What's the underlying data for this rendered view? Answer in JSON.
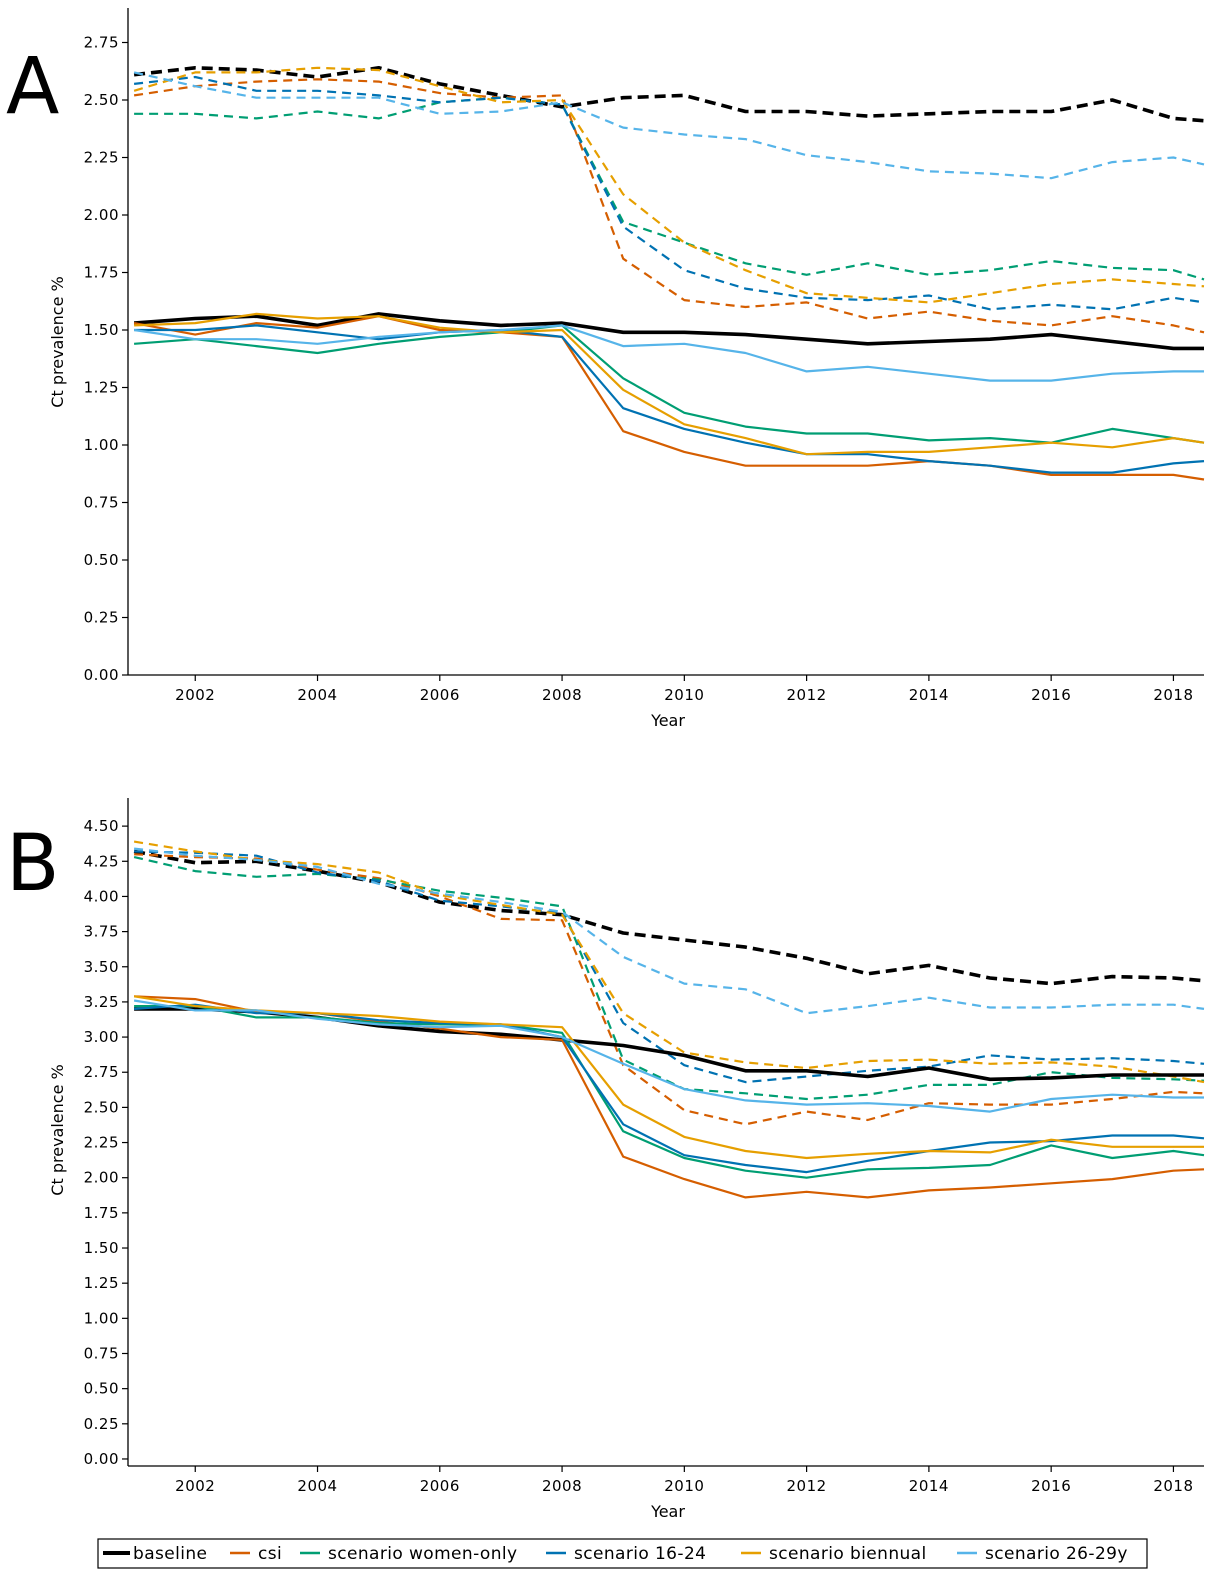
{
  "colors": {
    "baseline": "#000000",
    "csi": "#D55E00",
    "scenario women-only": "#009E73",
    "scenario 16-24": "#0072B2",
    "scenario biennual": "#E69F00",
    "scenario 26-29y": "#56B4E9"
  },
  "legend": {
    "placement": "bottom",
    "items": [
      "baseline",
      "csi",
      "scenario women-only",
      "scenario 16-24",
      "scenario biennual",
      "scenario 26-29y"
    ]
  },
  "chart_data": [
    {
      "panel_label": "A",
      "type": "line",
      "xlabel": "Year",
      "ylabel": "Ct prevalence %",
      "xlim": [
        2000.9,
        2018.5
      ],
      "ylim": [
        0,
        2.9
      ],
      "xticks": [
        "2002",
        "2004",
        "2006",
        "2008",
        "2010",
        "2012",
        "2014",
        "2016",
        "2018"
      ],
      "yticks": [
        "0.00",
        "0.25",
        "0.50",
        "0.75",
        "1.00",
        "1.25",
        "1.50",
        "1.75",
        "2.00",
        "2.25",
        "2.50",
        "2.75"
      ],
      "grid": false,
      "line_styles": "dashed and solid lines (legend shows solid)",
      "x": [
        2001,
        2002,
        2003,
        2004,
        2005,
        2006,
        2007,
        2008,
        2009,
        2010,
        2011,
        2012,
        2013,
        2014,
        2015,
        2016,
        2017,
        2018,
        2018.5
      ],
      "series": [
        {
          "name": "baseline",
          "dashed": true,
          "values": [
            2.61,
            2.64,
            2.63,
            2.6,
            2.64,
            2.57,
            2.52,
            2.47,
            2.51,
            2.52,
            2.45,
            2.45,
            2.43,
            2.44,
            2.45,
            2.45,
            2.5,
            2.42,
            2.41
          ]
        },
        {
          "name": "csi",
          "dashed": true,
          "values": [
            2.52,
            2.56,
            2.58,
            2.59,
            2.58,
            2.53,
            2.51,
            2.52,
            1.81,
            1.63,
            1.6,
            1.62,
            1.55,
            1.58,
            1.54,
            1.52,
            1.56,
            1.52,
            1.49
          ]
        },
        {
          "name": "scenario women-only",
          "dashed": true,
          "values": [
            2.44,
            2.44,
            2.42,
            2.45,
            2.42,
            2.49,
            2.51,
            2.48,
            1.97,
            1.88,
            1.79,
            1.74,
            1.79,
            1.74,
            1.76,
            1.8,
            1.77,
            1.76,
            1.72
          ]
        },
        {
          "name": "scenario 16-24",
          "dashed": true,
          "values": [
            2.57,
            2.6,
            2.54,
            2.54,
            2.52,
            2.49,
            2.51,
            2.48,
            1.95,
            1.76,
            1.68,
            1.64,
            1.63,
            1.65,
            1.59,
            1.61,
            1.59,
            1.64,
            1.62
          ]
        },
        {
          "name": "scenario biennual",
          "dashed": true,
          "values": [
            2.54,
            2.62,
            2.62,
            2.64,
            2.63,
            2.56,
            2.49,
            2.5,
            2.09,
            1.88,
            1.76,
            1.66,
            1.64,
            1.62,
            1.66,
            1.7,
            1.72,
            1.7,
            1.69
          ]
        },
        {
          "name": "scenario 26-29y",
          "dashed": true,
          "values": [
            2.62,
            2.56,
            2.51,
            2.51,
            2.51,
            2.44,
            2.45,
            2.49,
            2.38,
            2.35,
            2.33,
            2.26,
            2.23,
            2.19,
            2.18,
            2.16,
            2.23,
            2.25,
            2.22
          ]
        },
        {
          "name": "baseline",
          "dashed": false,
          "values": [
            1.53,
            1.55,
            1.56,
            1.52,
            1.57,
            1.54,
            1.52,
            1.53,
            1.49,
            1.49,
            1.48,
            1.46,
            1.44,
            1.45,
            1.46,
            1.48,
            1.45,
            1.42,
            1.42
          ]
        },
        {
          "name": "csi",
          "dashed": false,
          "values": [
            1.53,
            1.48,
            1.53,
            1.51,
            1.56,
            1.5,
            1.49,
            1.47,
            1.06,
            0.97,
            0.91,
            0.91,
            0.91,
            0.93,
            0.91,
            0.87,
            0.87,
            0.87,
            0.85
          ]
        },
        {
          "name": "scenario women-only",
          "dashed": false,
          "values": [
            1.44,
            1.46,
            1.43,
            1.4,
            1.44,
            1.47,
            1.49,
            1.52,
            1.29,
            1.14,
            1.08,
            1.05,
            1.05,
            1.02,
            1.03,
            1.01,
            1.07,
            1.03,
            1.01
          ]
        },
        {
          "name": "scenario 16-24",
          "dashed": false,
          "values": [
            1.5,
            1.5,
            1.52,
            1.49,
            1.46,
            1.49,
            1.5,
            1.47,
            1.16,
            1.07,
            1.01,
            0.96,
            0.96,
            0.93,
            0.91,
            0.88,
            0.88,
            0.92,
            0.93
          ]
        },
        {
          "name": "scenario biennual",
          "dashed": false,
          "values": [
            1.52,
            1.53,
            1.57,
            1.55,
            1.56,
            1.51,
            1.49,
            1.5,
            1.24,
            1.09,
            1.03,
            0.96,
            0.97,
            0.97,
            0.99,
            1.01,
            0.99,
            1.03,
            1.01
          ]
        },
        {
          "name": "scenario 26-29y",
          "dashed": false,
          "values": [
            1.5,
            1.46,
            1.46,
            1.44,
            1.47,
            1.49,
            1.5,
            1.52,
            1.43,
            1.44,
            1.4,
            1.32,
            1.34,
            1.31,
            1.28,
            1.28,
            1.31,
            1.32,
            1.32
          ]
        }
      ]
    },
    {
      "panel_label": "B",
      "type": "line",
      "xlabel": "Year",
      "ylabel": "Ct prevalence %",
      "xlim": [
        2000.9,
        2018.5
      ],
      "ylim": [
        -0.05,
        4.7
      ],
      "xticks": [
        "2002",
        "2004",
        "2006",
        "2008",
        "2010",
        "2012",
        "2014",
        "2016",
        "2018"
      ],
      "yticks": [
        "0.00",
        "0.25",
        "0.50",
        "0.75",
        "1.00",
        "1.25",
        "1.50",
        "1.75",
        "2.00",
        "2.25",
        "2.50",
        "2.75",
        "3.00",
        "3.25",
        "3.50",
        "3.75",
        "4.00",
        "4.25",
        "4.50"
      ],
      "grid": false,
      "line_styles": "dashed and solid lines (legend shows solid)",
      "x": [
        2001,
        2002,
        2003,
        2004,
        2005,
        2006,
        2007,
        2008,
        2009,
        2010,
        2011,
        2012,
        2013,
        2014,
        2015,
        2016,
        2017,
        2018,
        2018.5
      ],
      "series": [
        {
          "name": "baseline",
          "dashed": true,
          "values": [
            4.32,
            4.24,
            4.25,
            4.18,
            4.1,
            3.96,
            3.9,
            3.87,
            3.74,
            3.69,
            3.64,
            3.56,
            3.45,
            3.51,
            3.42,
            3.38,
            3.43,
            3.42,
            3.4
          ]
        },
        {
          "name": "csi",
          "dashed": true,
          "values": [
            4.3,
            4.28,
            4.27,
            4.19,
            4.13,
            4.0,
            3.84,
            3.83,
            2.8,
            2.48,
            2.38,
            2.47,
            2.41,
            2.53,
            2.52,
            2.52,
            2.56,
            2.61,
            2.6
          ]
        },
        {
          "name": "scenario women-only",
          "dashed": true,
          "values": [
            4.28,
            4.18,
            4.14,
            4.16,
            4.12,
            4.04,
            3.99,
            3.93,
            2.84,
            2.63,
            2.6,
            2.56,
            2.59,
            2.66,
            2.66,
            2.75,
            2.71,
            2.7,
            2.69
          ]
        },
        {
          "name": "scenario 16-24",
          "dashed": true,
          "values": [
            4.32,
            4.31,
            4.29,
            4.17,
            4.11,
            3.97,
            3.93,
            3.88,
            3.1,
            2.8,
            2.68,
            2.72,
            2.76,
            2.79,
            2.87,
            2.84,
            2.85,
            2.83,
            2.81
          ]
        },
        {
          "name": "scenario biennual",
          "dashed": true,
          "values": [
            4.39,
            4.32,
            4.26,
            4.23,
            4.17,
            4.01,
            3.94,
            3.87,
            3.17,
            2.89,
            2.82,
            2.78,
            2.83,
            2.84,
            2.81,
            2.82,
            2.79,
            2.72,
            2.68
          ]
        },
        {
          "name": "scenario 26-29y",
          "dashed": true,
          "values": [
            4.34,
            4.29,
            4.26,
            4.21,
            4.09,
            4.02,
            3.96,
            3.89,
            3.57,
            3.38,
            3.34,
            3.17,
            3.22,
            3.28,
            3.21,
            3.21,
            3.23,
            3.23,
            3.2
          ]
        },
        {
          "name": "baseline",
          "dashed": false,
          "values": [
            3.2,
            3.2,
            3.18,
            3.14,
            3.08,
            3.04,
            3.02,
            2.98,
            2.94,
            2.87,
            2.76,
            2.76,
            2.72,
            2.78,
            2.7,
            2.71,
            2.73,
            2.73,
            2.73
          ]
        },
        {
          "name": "csi",
          "dashed": false,
          "values": [
            3.29,
            3.27,
            3.18,
            3.17,
            3.11,
            3.06,
            3.0,
            2.98,
            2.15,
            1.99,
            1.86,
            1.9,
            1.86,
            1.91,
            1.93,
            1.96,
            1.99,
            2.05,
            2.06
          ]
        },
        {
          "name": "scenario women-only",
          "dashed": false,
          "values": [
            3.22,
            3.22,
            3.14,
            3.14,
            3.1,
            3.09,
            3.09,
            3.03,
            2.33,
            2.14,
            2.05,
            2.0,
            2.06,
            2.07,
            2.09,
            2.23,
            2.14,
            2.19,
            2.16
          ]
        },
        {
          "name": "scenario 16-24",
          "dashed": false,
          "values": [
            3.2,
            3.23,
            3.17,
            3.17,
            3.12,
            3.1,
            3.09,
            3.0,
            2.38,
            2.16,
            2.09,
            2.04,
            2.12,
            2.19,
            2.25,
            2.26,
            2.3,
            2.3,
            2.28
          ]
        },
        {
          "name": "scenario biennual",
          "dashed": false,
          "values": [
            3.29,
            3.22,
            3.19,
            3.17,
            3.15,
            3.11,
            3.09,
            3.07,
            2.52,
            2.29,
            2.19,
            2.14,
            2.17,
            2.19,
            2.18,
            2.27,
            2.22,
            2.22,
            2.22
          ]
        },
        {
          "name": "scenario 26-29y",
          "dashed": false,
          "values": [
            3.26,
            3.19,
            3.19,
            3.13,
            3.09,
            3.07,
            3.08,
            3.0,
            2.81,
            2.63,
            2.55,
            2.52,
            2.53,
            2.51,
            2.47,
            2.56,
            2.59,
            2.57,
            2.57
          ]
        }
      ]
    }
  ]
}
